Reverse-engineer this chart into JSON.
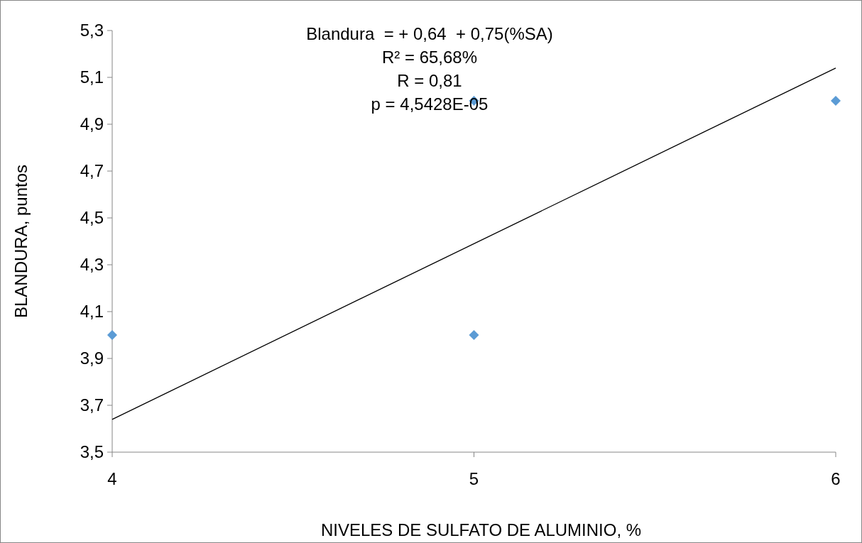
{
  "chart_data": {
    "type": "scatter",
    "xlabel": "NIVELES DE SULFATO DE ALUMINIO, %",
    "ylabel": "BLANDURA, puntos",
    "annotations": [
      "Blandura  = + 0,64  + 0,75(%SA)",
      "R² = 65,68%",
      "R = 0,81",
      "p = 4,5428E-05"
    ],
    "xlim": [
      4,
      6
    ],
    "xticks": [
      4,
      5,
      6
    ],
    "ylim": [
      3.5,
      5.3
    ],
    "yticks": [
      {
        "value": 3.5,
        "label": "3,5"
      },
      {
        "value": 3.7,
        "label": "3,7"
      },
      {
        "value": 3.9,
        "label": "3,9"
      },
      {
        "value": 4.1,
        "label": "4,1"
      },
      {
        "value": 4.3,
        "label": "4,3"
      },
      {
        "value": 4.5,
        "label": "4,5"
      },
      {
        "value": 4.7,
        "label": "4,7"
      },
      {
        "value": 4.9,
        "label": "4,9"
      },
      {
        "value": 5.1,
        "label": "5,1"
      },
      {
        "value": 5.3,
        "label": "5,3"
      }
    ],
    "grid": false,
    "marker": "diamond",
    "series": [
      {
        "color": "#5b9bd5",
        "x": [
          4,
          5,
          5,
          6
        ],
        "values": [
          4,
          4,
          5,
          5
        ]
      },
      {
        "type": "line",
        "color": "#000000",
        "marker": "none",
        "x": [
          4,
          6
        ],
        "values": [
          3.64,
          5.14
        ]
      }
    ]
  }
}
